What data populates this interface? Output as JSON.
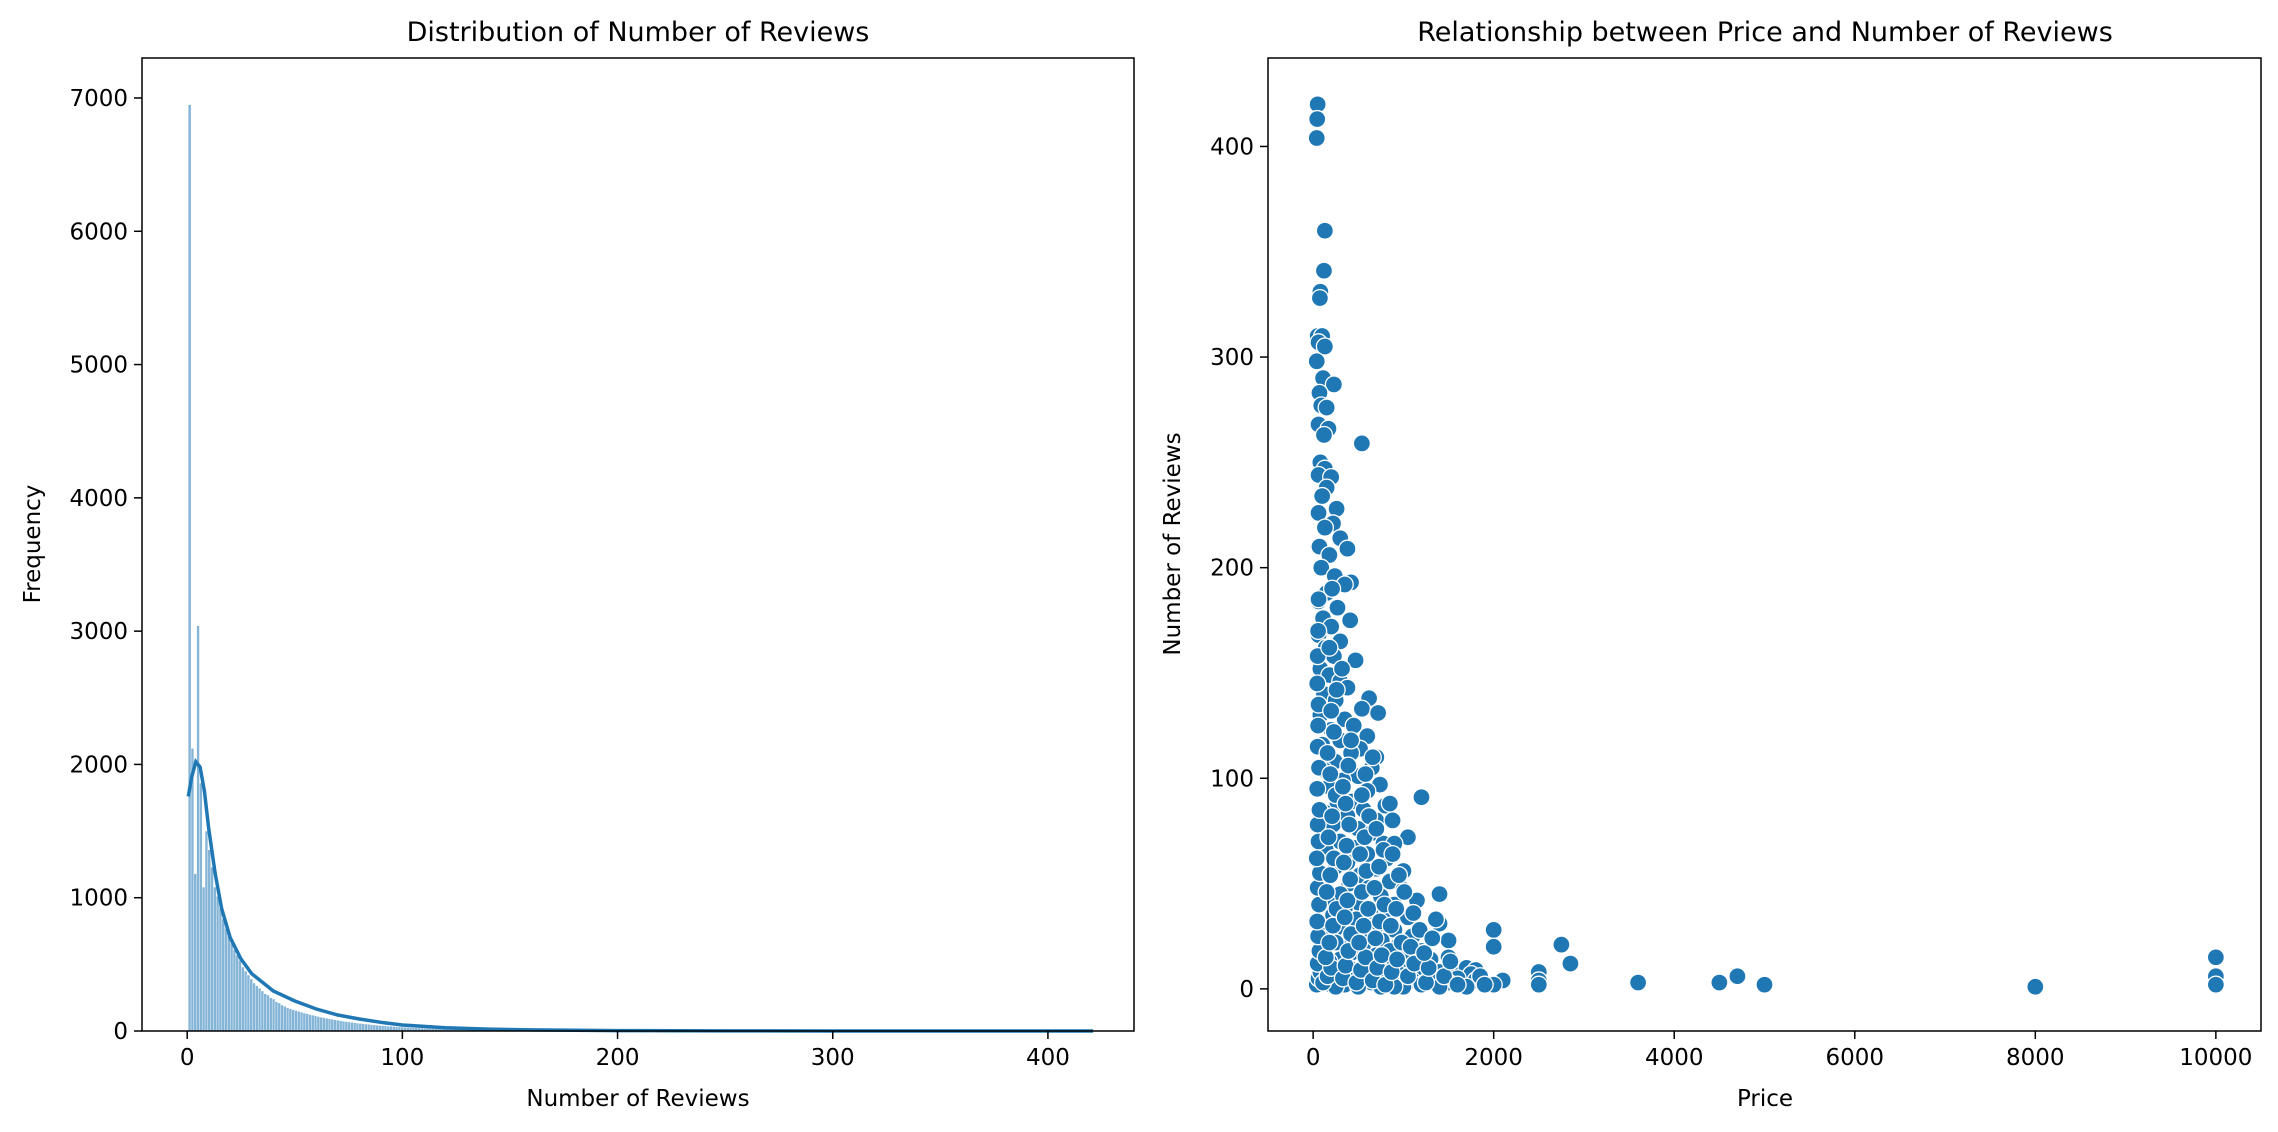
{
  "chart_data": [
    {
      "type": "histogram",
      "title": "Distribution of Number of Reviews",
      "xlabel": "Number of Reviews",
      "ylabel": "Frequency",
      "xlim": [
        -21,
        440
      ],
      "ylim": [
        0,
        7300
      ],
      "xticks": [
        0,
        100,
        200,
        300,
        400
      ],
      "yticks": [
        0,
        1000,
        2000,
        3000,
        4000,
        5000,
        6000,
        7000
      ],
      "bin_width": 1.3,
      "bin_start": 0.5,
      "bins_head": [
        6950,
        2120,
        1180,
        3040,
        1860,
        1080,
        1500,
        1360,
        1230,
        1080,
        1010,
        920,
        840,
        770,
        720,
        660,
        610,
        570,
        530,
        480,
        450,
        420,
        390,
        360,
        340,
        320,
        300,
        280,
        270,
        250,
        240,
        220,
        210,
        195,
        185,
        175
      ],
      "tail_decay_scale": 30,
      "x_max": 421,
      "kde_points": [
        [
          0.5,
          1760
        ],
        [
          2,
          1900
        ],
        [
          4,
          2020
        ],
        [
          6,
          1980
        ],
        [
          8,
          1800
        ],
        [
          10,
          1520
        ],
        [
          13,
          1180
        ],
        [
          16,
          920
        ],
        [
          20,
          700
        ],
        [
          25,
          540
        ],
        [
          30,
          430
        ],
        [
          40,
          300
        ],
        [
          50,
          225
        ],
        [
          60,
          165
        ],
        [
          70,
          120
        ],
        [
          80,
          90
        ],
        [
          90,
          65
        ],
        [
          100,
          45
        ],
        [
          120,
          25
        ],
        [
          140,
          14
        ],
        [
          160,
          8
        ],
        [
          200,
          3
        ],
        [
          250,
          1
        ],
        [
          300,
          0
        ],
        [
          421,
          0
        ]
      ],
      "bar_color": "#1f77b4",
      "line_color": "#1f77b4"
    },
    {
      "type": "scatter",
      "title": "Relationship between Price and Number of Reviews",
      "xlabel": "Price",
      "ylabel": "Number of Reviews",
      "xlim": [
        -500,
        10500
      ],
      "ylim": [
        -20,
        442
      ],
      "xticks": [
        0,
        2000,
        4000,
        6000,
        8000,
        10000
      ],
      "yticks": [
        0,
        100,
        200,
        300,
        400
      ],
      "points": [
        [
          50,
          420
        ],
        [
          45,
          413
        ],
        [
          40,
          404
        ],
        [
          130,
          360
        ],
        [
          120,
          341
        ],
        [
          80,
          331
        ],
        [
          75,
          328
        ],
        [
          50,
          310
        ],
        [
          100,
          310
        ],
        [
          60,
          307
        ],
        [
          130,
          305
        ],
        [
          40,
          298
        ],
        [
          110,
          290
        ],
        [
          230,
          287
        ],
        [
          70,
          283
        ],
        [
          90,
          277
        ],
        [
          150,
          276
        ],
        [
          60,
          268
        ],
        [
          170,
          266
        ],
        [
          120,
          263
        ],
        [
          540,
          259
        ],
        [
          80,
          250
        ],
        [
          130,
          247
        ],
        [
          60,
          244
        ],
        [
          200,
          243
        ],
        [
          150,
          238
        ],
        [
          100,
          234
        ],
        [
          260,
          228
        ],
        [
          60,
          226
        ],
        [
          220,
          221
        ],
        [
          130,
          219
        ],
        [
          300,
          214
        ],
        [
          70,
          210
        ],
        [
          380,
          209
        ],
        [
          180,
          206
        ],
        [
          90,
          200
        ],
        [
          240,
          196
        ],
        [
          420,
          193
        ],
        [
          350,
          192
        ],
        [
          150,
          188
        ],
        [
          60,
          184
        ],
        [
          270,
          181
        ],
        [
          110,
          176
        ],
        [
          410,
          175
        ],
        [
          200,
          172
        ],
        [
          60,
          168
        ],
        [
          300,
          165
        ],
        [
          140,
          162
        ],
        [
          230,
          158
        ],
        [
          470,
          156
        ],
        [
          80,
          152
        ],
        [
          180,
          149
        ],
        [
          300,
          146
        ],
        [
          380,
          143
        ],
        [
          120,
          140
        ],
        [
          620,
          138
        ],
        [
          250,
          137
        ],
        [
          540,
          133
        ],
        [
          720,
          131
        ],
        [
          80,
          130
        ],
        [
          350,
          128
        ],
        [
          450,
          125
        ],
        [
          200,
          123
        ],
        [
          600,
          120
        ],
        [
          300,
          118
        ],
        [
          100,
          116
        ],
        [
          520,
          114
        ],
        [
          420,
          112
        ],
        [
          700,
          110
        ],
        [
          240,
          108
        ],
        [
          650,
          105
        ],
        [
          120,
          104
        ],
        [
          500,
          101
        ],
        [
          330,
          99
        ],
        [
          740,
          97
        ],
        [
          180,
          96
        ],
        [
          600,
          94
        ],
        [
          1200,
          91
        ],
        [
          430,
          89
        ],
        [
          270,
          88
        ],
        [
          800,
          87
        ],
        [
          560,
          85
        ],
        [
          120,
          84
        ],
        [
          380,
          82
        ],
        [
          700,
          80
        ],
        [
          880,
          80
        ],
        [
          220,
          78
        ],
        [
          500,
          76
        ],
        [
          650,
          74
        ],
        [
          1050,
          72
        ],
        [
          300,
          70
        ],
        [
          780,
          69
        ],
        [
          900,
          69
        ],
        [
          450,
          67
        ],
        [
          140,
          66
        ],
        [
          600,
          64
        ],
        [
          820,
          62
        ],
        [
          380,
          60
        ],
        [
          250,
          58
        ],
        [
          700,
          57
        ],
        [
          1000,
          56
        ],
        [
          520,
          54
        ],
        [
          160,
          53
        ],
        [
          850,
          51
        ],
        [
          400,
          50
        ],
        [
          620,
          48
        ],
        [
          1000,
          47
        ],
        [
          300,
          45
        ],
        [
          1400,
          45
        ],
        [
          750,
          44
        ],
        [
          150,
          42
        ],
        [
          500,
          41
        ],
        [
          900,
          40
        ],
        [
          1150,
          42
        ],
        [
          350,
          38
        ],
        [
          650,
          37
        ],
        [
          820,
          36
        ],
        [
          220,
          35
        ],
        [
          1050,
          34
        ],
        [
          480,
          33
        ],
        [
          1400,
          31
        ],
        [
          700,
          30
        ],
        [
          300,
          29
        ],
        [
          900,
          28
        ],
        [
          2000,
          28
        ],
        [
          160,
          27
        ],
        [
          580,
          26
        ],
        [
          1100,
          25
        ],
        [
          400,
          24
        ],
        [
          760,
          23
        ],
        [
          1500,
          23
        ],
        [
          250,
          22
        ],
        [
          2750,
          21
        ],
        [
          950,
          21
        ],
        [
          550,
          20
        ],
        [
          2000,
          20
        ],
        [
          120,
          19
        ],
        [
          850,
          18
        ],
        [
          1200,
          18
        ],
        [
          420,
          17
        ],
        [
          700,
          16
        ],
        [
          1500,
          15
        ],
        [
          10000,
          15
        ],
        [
          300,
          14
        ],
        [
          1000,
          14
        ],
        [
          1300,
          14
        ],
        [
          180,
          13
        ],
        [
          600,
          12
        ],
        [
          2850,
          12
        ],
        [
          850,
          11
        ],
        [
          1550,
          11
        ],
        [
          400,
          10
        ],
        [
          1150,
          10
        ],
        [
          1700,
          10
        ],
        [
          250,
          9
        ],
        [
          750,
          9
        ],
        [
          1800,
          9
        ],
        [
          500,
          8
        ],
        [
          2500,
          8
        ],
        [
          1400,
          8
        ],
        [
          950,
          7
        ],
        [
          150,
          7
        ],
        [
          1750,
          7
        ],
        [
          650,
          6
        ],
        [
          4700,
          6
        ],
        [
          10000,
          6
        ],
        [
          1300,
          6
        ],
        [
          300,
          5
        ],
        [
          1600,
          5
        ],
        [
          800,
          5
        ],
        [
          2500,
          4
        ],
        [
          2100,
          4
        ],
        [
          450,
          4
        ],
        [
          1100,
          4
        ],
        [
          1800,
          4
        ],
        [
          120,
          3
        ],
        [
          900,
          3
        ],
        [
          3600,
          3
        ],
        [
          4500,
          3
        ],
        [
          650,
          3
        ],
        [
          1500,
          3
        ],
        [
          2000,
          2
        ],
        [
          350,
          2
        ],
        [
          5000,
          2
        ],
        [
          1200,
          2
        ],
        [
          10000,
          2
        ],
        [
          200,
          2
        ],
        [
          2500,
          2
        ],
        [
          750,
          1
        ],
        [
          8000,
          1
        ],
        [
          1000,
          1
        ],
        [
          500,
          1
        ],
        [
          1400,
          1
        ],
        [
          1700,
          1
        ],
        [
          250,
          1
        ],
        [
          900,
          1
        ],
        [
          40,
          2
        ],
        [
          60,
          5
        ],
        [
          80,
          8
        ],
        [
          50,
          12
        ],
        [
          70,
          18
        ],
        [
          55,
          25
        ],
        [
          45,
          32
        ],
        [
          65,
          40
        ],
        [
          50,
          48
        ],
        [
          75,
          55
        ],
        [
          40,
          62
        ],
        [
          60,
          70
        ],
        [
          50,
          78
        ],
        [
          70,
          85
        ],
        [
          45,
          95
        ],
        [
          65,
          105
        ],
        [
          50,
          115
        ],
        [
          55,
          125
        ],
        [
          60,
          135
        ],
        [
          45,
          145
        ],
        [
          50,
          158
        ],
        [
          55,
          170
        ],
        [
          60,
          185
        ],
        [
          110,
          3
        ],
        [
          160,
          6
        ],
        [
          200,
          10
        ],
        [
          140,
          15
        ],
        [
          180,
          22
        ],
        [
          220,
          30
        ],
        [
          260,
          38
        ],
        [
          150,
          46
        ],
        [
          190,
          54
        ],
        [
          230,
          62
        ],
        [
          170,
          72
        ],
        [
          210,
          82
        ],
        [
          250,
          92
        ],
        [
          190,
          102
        ],
        [
          160,
          112
        ],
        [
          230,
          122
        ],
        [
          200,
          132
        ],
        [
          260,
          142
        ],
        [
          320,
          152
        ],
        [
          180,
          162
        ],
        [
          210,
          190
        ],
        [
          330,
          5
        ],
        [
          360,
          11
        ],
        [
          390,
          18
        ],
        [
          420,
          26
        ],
        [
          350,
          34
        ],
        [
          380,
          42
        ],
        [
          410,
          52
        ],
        [
          340,
          60
        ],
        [
          370,
          68
        ],
        [
          400,
          78
        ],
        [
          360,
          88
        ],
        [
          330,
          96
        ],
        [
          390,
          106
        ],
        [
          420,
          118
        ],
        [
          480,
          3
        ],
        [
          530,
          9
        ],
        [
          580,
          15
        ],
        [
          510,
          22
        ],
        [
          560,
          30
        ],
        [
          610,
          38
        ],
        [
          540,
          46
        ],
        [
          590,
          56
        ],
        [
          520,
          64
        ],
        [
          570,
          72
        ],
        [
          620,
          82
        ],
        [
          540,
          92
        ],
        [
          580,
          102
        ],
        [
          660,
          110
        ],
        [
          660,
          4
        ],
        [
          710,
          10
        ],
        [
          760,
          16
        ],
        [
          690,
          24
        ],
        [
          740,
          32
        ],
        [
          790,
          40
        ],
        [
          680,
          48
        ],
        [
          730,
          58
        ],
        [
          780,
          66
        ],
        [
          700,
          76
        ],
        [
          850,
          88
        ],
        [
          800,
          2
        ],
        [
          870,
          8
        ],
        [
          930,
          14
        ],
        [
          980,
          22
        ],
        [
          860,
          30
        ],
        [
          920,
          38
        ],
        [
          1010,
          46
        ],
        [
          950,
          54
        ],
        [
          880,
          64
        ],
        [
          1050,
          6
        ],
        [
          1120,
          12
        ],
        [
          1080,
          20
        ],
        [
          1180,
          28
        ],
        [
          1110,
          36
        ],
        [
          1250,
          3
        ],
        [
          1280,
          10
        ],
        [
          1230,
          17
        ],
        [
          1320,
          24
        ],
        [
          1360,
          33
        ],
        [
          1450,
          6
        ],
        [
          1520,
          13
        ],
        [
          1600,
          2
        ],
        [
          1850,
          6
        ],
        [
          1900,
          2
        ]
      ],
      "point_color": "#1f77b4"
    }
  ]
}
